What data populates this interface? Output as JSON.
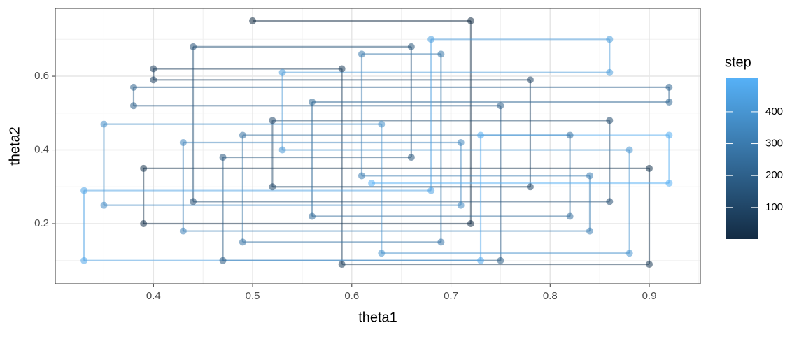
{
  "chart_data": {
    "type": "gibbs-path",
    "x_label": "theta1",
    "y_label": "theta2",
    "xlim": [
      0.301,
      0.9515
    ],
    "ylim": [
      0.037,
      0.784
    ],
    "xticks": [
      0.4,
      0.5,
      0.6,
      0.7,
      0.8,
      0.9
    ],
    "yticks": [
      0.2,
      0.4,
      0.6
    ],
    "grid": true,
    "legend": {
      "title": "step",
      "ticks": [
        100,
        200,
        300,
        400
      ],
      "low_color": "#132B43",
      "high_color": "#56B1F7",
      "position": "right"
    },
    "x": [
      0.5,
      0.72,
      0.72,
      0.39,
      0.39,
      0.9,
      0.9,
      0.59,
      0.59,
      0.4,
      0.4,
      0.78,
      0.78,
      0.52,
      0.52,
      0.86,
      0.86,
      0.44,
      0.44,
      0.66,
      0.66,
      0.47,
      0.47,
      0.75,
      0.75,
      0.38,
      0.38,
      0.92,
      0.92,
      0.56,
      0.56,
      0.82,
      0.82,
      0.49,
      0.49,
      0.69,
      0.69,
      0.61,
      0.61,
      0.84,
      0.84,
      0.43,
      0.43,
      0.71,
      0.71,
      0.35,
      0.35,
      0.63,
      0.63,
      0.88,
      0.88,
      0.53,
      0.53,
      0.86,
      0.86,
      0.68,
      0.68,
      0.33,
      0.33,
      0.73,
      0.73,
      0.92,
      0.92,
      0.62
    ],
    "y": [
      0.75,
      0.75,
      0.2,
      0.2,
      0.35,
      0.35,
      0.09,
      0.09,
      0.62,
      0.62,
      0.59,
      0.59,
      0.3,
      0.3,
      0.48,
      0.48,
      0.26,
      0.26,
      0.68,
      0.68,
      0.38,
      0.38,
      0.1,
      0.1,
      0.52,
      0.52,
      0.57,
      0.57,
      0.53,
      0.53,
      0.22,
      0.22,
      0.44,
      0.44,
      0.15,
      0.15,
      0.66,
      0.66,
      0.33,
      0.33,
      0.18,
      0.18,
      0.42,
      0.42,
      0.25,
      0.25,
      0.47,
      0.47,
      0.12,
      0.12,
      0.4,
      0.4,
      0.61,
      0.61,
      0.7,
      0.7,
      0.29,
      0.29,
      0.1,
      0.1,
      0.44,
      0.44,
      0.31,
      0.31
    ],
    "step": [
      1,
      9,
      17,
      25,
      33,
      41,
      49,
      57,
      65,
      73,
      81,
      89,
      97,
      105,
      113,
      121,
      129,
      137,
      145,
      153,
      161,
      169,
      177,
      185,
      193,
      201,
      209,
      217,
      225,
      233,
      241,
      249,
      257,
      265,
      273,
      281,
      289,
      297,
      305,
      313,
      321,
      329,
      337,
      345,
      353,
      361,
      369,
      377,
      385,
      393,
      401,
      409,
      417,
      425,
      433,
      441,
      449,
      457,
      465,
      473,
      481,
      489,
      497,
      505
    ]
  }
}
